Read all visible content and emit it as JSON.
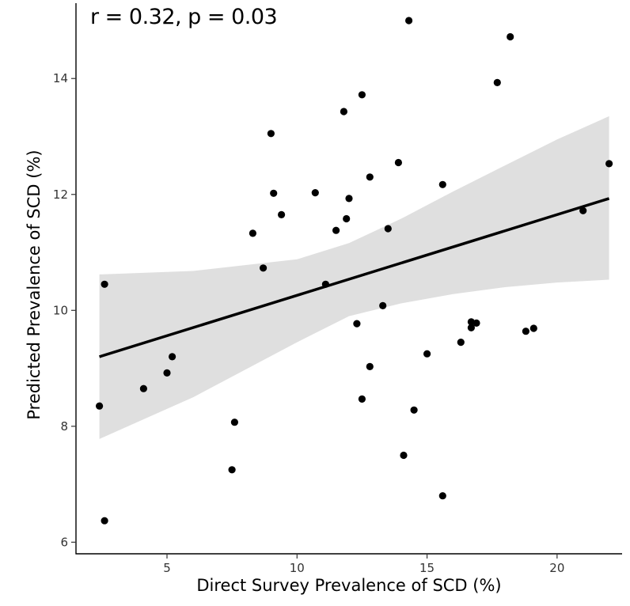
{
  "chart_data": {
    "type": "scatter",
    "annotation": "r = 0.32, p = 0.03",
    "xlabel": "Direct Survey Prevalence of SCD (%)",
    "ylabel": "Predicted Prevalence of SCD (%)",
    "xlim": [
      1.5,
      22.5
    ],
    "ylim": [
      5.8,
      15.3
    ],
    "x_ticks": [
      5,
      10,
      15,
      20
    ],
    "y_ticks": [
      6,
      8,
      10,
      12,
      14
    ],
    "grid": false,
    "colors": {
      "points": "#000000",
      "line": "#000000",
      "band": "#d9d9d9"
    },
    "points": [
      [
        2.6,
        10.45
      ],
      [
        2.4,
        8.35
      ],
      [
        2.6,
        6.37
      ],
      [
        4.1,
        8.65
      ],
      [
        5.0,
        8.92
      ],
      [
        5.2,
        9.2
      ],
      [
        7.5,
        7.25
      ],
      [
        7.6,
        8.07
      ],
      [
        8.3,
        11.33
      ],
      [
        8.7,
        10.73
      ],
      [
        9.0,
        13.05
      ],
      [
        9.1,
        12.02
      ],
      [
        9.4,
        11.65
      ],
      [
        10.7,
        12.03
      ],
      [
        11.1,
        10.45
      ],
      [
        11.5,
        11.38
      ],
      [
        11.8,
        13.43
      ],
      [
        11.9,
        11.58
      ],
      [
        12.0,
        11.93
      ],
      [
        12.3,
        9.77
      ],
      [
        12.5,
        13.72
      ],
      [
        12.5,
        8.47
      ],
      [
        12.8,
        12.3
      ],
      [
        12.8,
        9.03
      ],
      [
        13.3,
        10.08
      ],
      [
        13.5,
        11.41
      ],
      [
        13.9,
        12.55
      ],
      [
        14.1,
        7.5
      ],
      [
        14.3,
        15.0
      ],
      [
        14.5,
        8.28
      ],
      [
        15.0,
        9.25
      ],
      [
        15.6,
        12.17
      ],
      [
        15.6,
        6.8
      ],
      [
        16.3,
        9.45
      ],
      [
        16.7,
        9.8
      ],
      [
        16.7,
        9.7
      ],
      [
        16.9,
        9.78
      ],
      [
        17.7,
        13.93
      ],
      [
        18.2,
        14.72
      ],
      [
        18.8,
        9.64
      ],
      [
        19.1,
        9.69
      ],
      [
        21.0,
        11.72
      ],
      [
        22.0,
        12.53
      ]
    ],
    "fit": {
      "x": [
        2.4,
        22.0
      ],
      "y": [
        9.2,
        11.93
      ]
    },
    "ci_band": {
      "x": [
        2.4,
        6,
        10,
        12,
        14,
        16,
        18,
        20,
        22.0
      ],
      "upper": [
        10.62,
        10.68,
        10.88,
        11.16,
        11.58,
        12.05,
        12.5,
        12.95,
        13.35
      ],
      "lower": [
        7.78,
        8.5,
        9.45,
        9.9,
        10.12,
        10.28,
        10.4,
        10.48,
        10.53
      ]
    }
  }
}
